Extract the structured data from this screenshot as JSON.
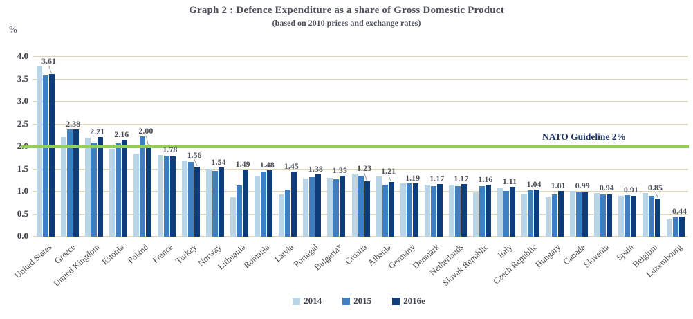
{
  "header": {
    "title": "Graph 2 : Defence Expenditure as a share of Gross Domestic Product",
    "subtitle": "(based on 2010 prices and exchange rates)"
  },
  "axis": {
    "unit_label": "%"
  },
  "reference_line_label": "NATO Guideline 2%",
  "chart_data": {
    "type": "bar",
    "title": "Graph 2 : Defence Expenditure as a share of Gross Domestic Product",
    "subtitle": "(based on 2010 prices and exchange rates)",
    "ylabel": "%",
    "ylim": [
      0,
      4.0
    ],
    "ytick_step": 0.5,
    "grid": true,
    "gridline_color": "#ddd6bf",
    "legend_position": "bottom",
    "value_labels_series_index": 2,
    "categories": [
      "United States",
      "Greece",
      "United Kingdom",
      "Estonia",
      "Poland",
      "France",
      "Turkey",
      "Norway",
      "Lithuania",
      "Romania",
      "Latvia",
      "Portugal",
      "Bulgaria*",
      "Croatia",
      "Albania",
      "Germany",
      "Denmark",
      "Netherlands",
      "Slovak Republic",
      "Italy",
      "Czech Republic",
      "Hungary",
      "Canada",
      "Slovenia",
      "Spain",
      "Belgium",
      "Luxembourg"
    ],
    "series": [
      {
        "name": "2014",
        "color": "#b9d6e8",
        "values": [
          3.78,
          2.21,
          2.2,
          1.94,
          1.85,
          1.82,
          1.7,
          1.51,
          0.88,
          1.35,
          0.94,
          1.3,
          1.31,
          1.4,
          1.34,
          1.18,
          1.15,
          1.15,
          0.99,
          1.08,
          0.96,
          0.87,
          1.01,
          0.97,
          0.91,
          0.97,
          0.38
        ]
      },
      {
        "name": "2015",
        "color": "#3d7fc1",
        "values": [
          3.59,
          2.38,
          2.1,
          2.07,
          2.23,
          1.8,
          1.66,
          1.46,
          1.14,
          1.45,
          1.04,
          1.32,
          1.27,
          1.36,
          1.16,
          1.18,
          1.12,
          1.13,
          1.13,
          1.01,
          1.03,
          0.94,
          0.98,
          0.94,
          0.92,
          0.91,
          0.43
        ]
      },
      {
        "name": "2016e",
        "color": "#0e3d7c",
        "values": [
          3.61,
          2.38,
          2.21,
          2.16,
          2.0,
          1.78,
          1.56,
          1.54,
          1.49,
          1.48,
          1.45,
          1.38,
          1.35,
          1.23,
          1.21,
          1.19,
          1.17,
          1.17,
          1.16,
          1.11,
          1.04,
          1.01,
          0.99,
          0.94,
          0.91,
          0.85,
          0.44
        ]
      }
    ],
    "reference_line": {
      "value": 2.0,
      "label": "NATO Guideline 2%",
      "color": "#92d050"
    },
    "text_color": "#4b4f58",
    "leader_line_color": "#9aa0a6"
  }
}
